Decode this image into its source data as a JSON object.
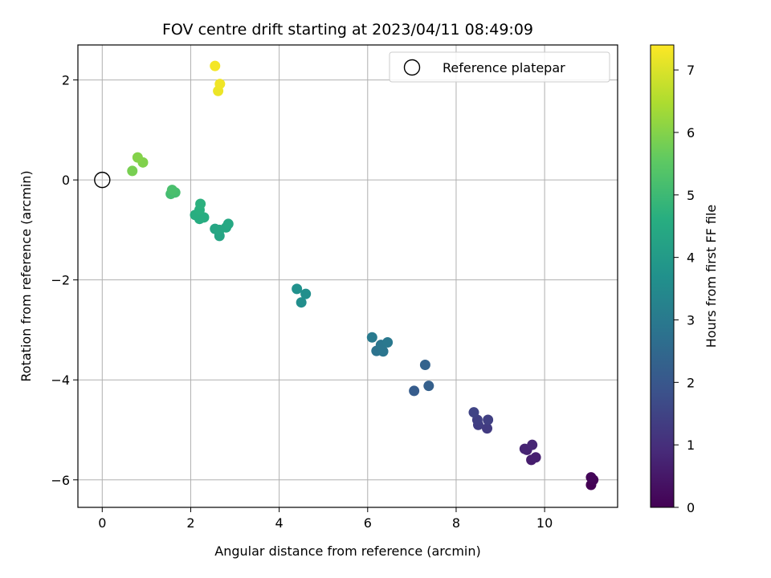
{
  "chart_data": {
    "type": "scatter",
    "title": "FOV centre drift starting at 2023/04/11 08:49:09",
    "xlabel": "Angular distance from reference (arcmin)",
    "ylabel": "Rotation from reference (arcmin)",
    "xlim": [
      -0.55,
      11.65
    ],
    "ylim": [
      -6.55,
      2.7
    ],
    "xticks": [
      0,
      2,
      4,
      6,
      8,
      10
    ],
    "yticks": [
      -6,
      -4,
      -2,
      0,
      2
    ],
    "xtick_labels": [
      "0",
      "2",
      "4",
      "6",
      "8",
      "10"
    ],
    "ytick_labels": [
      "−6",
      "−4",
      "−2",
      "0",
      "2"
    ],
    "grid": true,
    "legend": {
      "placement": "top-right",
      "entries": [
        "Reference platepar"
      ]
    },
    "reference_point": {
      "x": 0,
      "y": 0,
      "marker": "open-circle",
      "color": "#000000"
    },
    "colorbar": {
      "label": "Hours from first FF file",
      "range": [
        0,
        7.4
      ],
      "ticks": [
        0,
        1,
        2,
        3,
        4,
        5,
        6,
        7
      ],
      "tick_labels": [
        "0",
        "1",
        "2",
        "3",
        "4",
        "5",
        "6",
        "7"
      ],
      "colormap": "viridis"
    },
    "points": [
      {
        "x": 11.05,
        "y": -6.1,
        "t": 0.0
      },
      {
        "x": 11.1,
        "y": -6.0,
        "t": 0.05
      },
      {
        "x": 11.05,
        "y": -5.95,
        "t": 0.1
      },
      {
        "x": 9.7,
        "y": -5.6,
        "t": 0.6
      },
      {
        "x": 9.8,
        "y": -5.55,
        "t": 0.65
      },
      {
        "x": 9.6,
        "y": -5.4,
        "t": 0.7
      },
      {
        "x": 9.55,
        "y": -5.38,
        "t": 0.75
      },
      {
        "x": 9.72,
        "y": -5.3,
        "t": 0.8
      },
      {
        "x": 8.7,
        "y": -4.97,
        "t": 1.3
      },
      {
        "x": 8.5,
        "y": -4.9,
        "t": 1.35
      },
      {
        "x": 8.48,
        "y": -4.8,
        "t": 1.4
      },
      {
        "x": 8.72,
        "y": -4.8,
        "t": 1.42
      },
      {
        "x": 8.4,
        "y": -4.65,
        "t": 1.5
      },
      {
        "x": 7.05,
        "y": -4.22,
        "t": 2.15
      },
      {
        "x": 7.38,
        "y": -4.12,
        "t": 2.25
      },
      {
        "x": 7.3,
        "y": -3.7,
        "t": 2.35
      },
      {
        "x": 6.2,
        "y": -3.42,
        "t": 2.8
      },
      {
        "x": 6.35,
        "y": -3.43,
        "t": 2.85
      },
      {
        "x": 6.3,
        "y": -3.3,
        "t": 2.9
      },
      {
        "x": 6.45,
        "y": -3.25,
        "t": 2.95
      },
      {
        "x": 6.1,
        "y": -3.15,
        "t": 3.0
      },
      {
        "x": 4.5,
        "y": -2.45,
        "t": 3.6
      },
      {
        "x": 4.6,
        "y": -2.28,
        "t": 3.65
      },
      {
        "x": 4.4,
        "y": -2.18,
        "t": 3.7
      },
      {
        "x": 2.65,
        "y": -1.12,
        "t": 4.3
      },
      {
        "x": 2.55,
        "y": -0.98,
        "t": 4.35
      },
      {
        "x": 2.65,
        "y": -1.0,
        "t": 4.38
      },
      {
        "x": 2.8,
        "y": -0.95,
        "t": 4.4
      },
      {
        "x": 2.85,
        "y": -0.88,
        "t": 4.42
      },
      {
        "x": 2.2,
        "y": -0.78,
        "t": 4.55
      },
      {
        "x": 2.3,
        "y": -0.75,
        "t": 4.58
      },
      {
        "x": 2.1,
        "y": -0.7,
        "t": 4.6
      },
      {
        "x": 2.2,
        "y": -0.6,
        "t": 4.65
      },
      {
        "x": 2.22,
        "y": -0.48,
        "t": 4.7
      },
      {
        "x": 1.55,
        "y": -0.28,
        "t": 5.1
      },
      {
        "x": 1.65,
        "y": -0.25,
        "t": 5.15
      },
      {
        "x": 1.58,
        "y": -0.2,
        "t": 5.2
      },
      {
        "x": 0.68,
        "y": 0.18,
        "t": 5.85
      },
      {
        "x": 0.92,
        "y": 0.35,
        "t": 5.95
      },
      {
        "x": 0.8,
        "y": 0.45,
        "t": 6.0
      },
      {
        "x": 2.62,
        "y": 1.78,
        "t": 7.2
      },
      {
        "x": 2.66,
        "y": 1.92,
        "t": 7.25
      },
      {
        "x": 2.55,
        "y": 2.28,
        "t": 7.3
      }
    ]
  }
}
